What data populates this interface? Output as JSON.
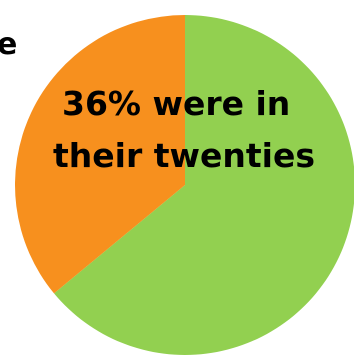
{
  "chart_data": {
    "type": "pie",
    "slices": [
      {
        "value": 64,
        "color": "#92d050"
      },
      {
        "value": 36,
        "color": "#f7901e"
      }
    ],
    "annotation_lines": [
      "36% were in",
      "their twenties"
    ],
    "edge_fragment": "e"
  }
}
